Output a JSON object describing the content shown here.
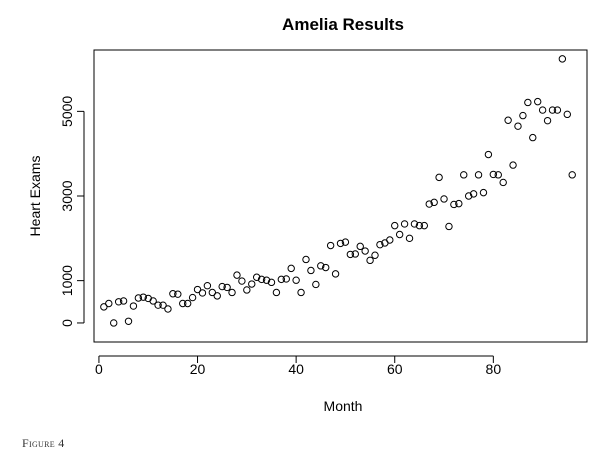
{
  "caption": "Figure 4",
  "chart_data": {
    "type": "scatter",
    "title": "Amelia Results",
    "xlabel": "Month",
    "ylabel": "Heart Exams",
    "xlim": [
      -1,
      99
    ],
    "ylim": [
      -450,
      6450
    ],
    "x_ticks": [
      0,
      20,
      40,
      60,
      80
    ],
    "y_ticks": [
      0,
      1000,
      3000,
      5000
    ],
    "marker": "open-circle",
    "x": [
      1,
      2,
      3,
      4,
      5,
      6,
      7,
      8,
      9,
      10,
      11,
      12,
      13,
      14,
      15,
      16,
      17,
      18,
      19,
      20,
      21,
      22,
      23,
      24,
      25,
      26,
      27,
      28,
      29,
      30,
      31,
      32,
      33,
      34,
      35,
      36,
      37,
      38,
      39,
      40,
      41,
      42,
      43,
      44,
      45,
      46,
      47,
      48,
      49,
      50,
      51,
      52,
      53,
      54,
      55,
      56,
      57,
      58,
      59,
      60,
      61,
      62,
      63,
      64,
      65,
      66,
      67,
      68,
      69,
      70,
      71,
      72,
      73,
      74,
      75,
      76,
      77,
      78,
      79,
      80,
      81,
      82,
      83,
      84,
      85,
      86,
      87,
      88,
      89,
      90,
      91,
      92,
      93,
      94,
      95,
      96
    ],
    "y": [
      380,
      460,
      0,
      500,
      520,
      40,
      400,
      590,
      610,
      580,
      520,
      420,
      420,
      330,
      690,
      680,
      460,
      460,
      600,
      790,
      710,
      880,
      720,
      640,
      860,
      840,
      720,
      1130,
      990,
      780,
      920,
      1080,
      1030,
      1010,
      960,
      720,
      1030,
      1040,
      1290,
      1010,
      720,
      1500,
      1240,
      910,
      1350,
      1310,
      1830,
      1160,
      1880,
      1910,
      1620,
      1630,
      1810,
      1700,
      1480,
      1600,
      1850,
      1890,
      1960,
      2300,
      2090,
      2340,
      2000,
      2340,
      2300,
      2300,
      2810,
      2850,
      3440,
      2930,
      2280,
      2800,
      2820,
      3500,
      3000,
      3050,
      3500,
      3080,
      3980,
      3510,
      3500,
      3320,
      4790,
      3730,
      4650,
      4900,
      5210,
      4380,
      5230,
      5030,
      4780,
      5030,
      5030,
      6240,
      4930,
      3500
    ]
  }
}
